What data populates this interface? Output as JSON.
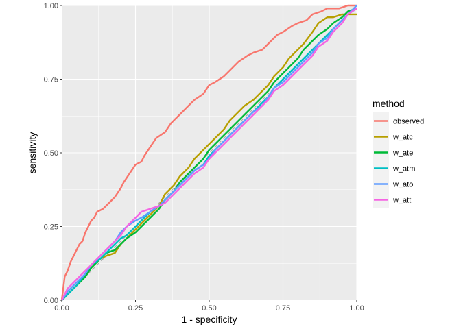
{
  "chart_data": {
    "type": "line",
    "title": "",
    "xlabel": "1 - specificity",
    "ylabel": "sensitivity",
    "xlim": [
      0,
      1
    ],
    "ylim": [
      0,
      1
    ],
    "x_ticks": [
      "0.00",
      "0.25",
      "0.50",
      "0.75",
      "1.00"
    ],
    "y_ticks": [
      "0.00",
      "0.25",
      "0.50",
      "0.75",
      "1.00"
    ],
    "grid": true,
    "reference_line": {
      "style": "dashed",
      "from": [
        0,
        0
      ],
      "to": [
        1,
        1
      ]
    },
    "legend": {
      "title": "method",
      "position": "right"
    },
    "series": [
      {
        "name": "observed",
        "color": "#F8766D",
        "points": [
          [
            0,
            0
          ],
          [
            0.005,
            0.04
          ],
          [
            0.01,
            0.08
          ],
          [
            0.02,
            0.1
          ],
          [
            0.03,
            0.13
          ],
          [
            0.04,
            0.15
          ],
          [
            0.06,
            0.19
          ],
          [
            0.07,
            0.2
          ],
          [
            0.08,
            0.23
          ],
          [
            0.09,
            0.25
          ],
          [
            0.1,
            0.27
          ],
          [
            0.11,
            0.28
          ],
          [
            0.12,
            0.3
          ],
          [
            0.14,
            0.31
          ],
          [
            0.16,
            0.33
          ],
          [
            0.18,
            0.35
          ],
          [
            0.2,
            0.38
          ],
          [
            0.21,
            0.4
          ],
          [
            0.23,
            0.43
          ],
          [
            0.25,
            0.46
          ],
          [
            0.27,
            0.47
          ],
          [
            0.28,
            0.49
          ],
          [
            0.3,
            0.52
          ],
          [
            0.32,
            0.55
          ],
          [
            0.35,
            0.57
          ],
          [
            0.37,
            0.6
          ],
          [
            0.4,
            0.63
          ],
          [
            0.43,
            0.66
          ],
          [
            0.45,
            0.68
          ],
          [
            0.48,
            0.7
          ],
          [
            0.5,
            0.73
          ],
          [
            0.52,
            0.74
          ],
          [
            0.55,
            0.76
          ],
          [
            0.58,
            0.79
          ],
          [
            0.6,
            0.81
          ],
          [
            0.63,
            0.83
          ],
          [
            0.65,
            0.84
          ],
          [
            0.68,
            0.85
          ],
          [
            0.7,
            0.87
          ],
          [
            0.73,
            0.9
          ],
          [
            0.75,
            0.91
          ],
          [
            0.78,
            0.93
          ],
          [
            0.8,
            0.94
          ],
          [
            0.83,
            0.95
          ],
          [
            0.85,
            0.97
          ],
          [
            0.88,
            0.98
          ],
          [
            0.9,
            0.99
          ],
          [
            0.94,
            0.99
          ],
          [
            0.97,
            1.0
          ],
          [
            1.0,
            1.0
          ]
        ]
      },
      {
        "name": "w_atc",
        "color": "#B79F00",
        "points": [
          [
            0,
            0
          ],
          [
            0.02,
            0.02
          ],
          [
            0.05,
            0.05
          ],
          [
            0.08,
            0.08
          ],
          [
            0.1,
            0.11
          ],
          [
            0.13,
            0.14
          ],
          [
            0.15,
            0.15
          ],
          [
            0.18,
            0.16
          ],
          [
            0.2,
            0.19
          ],
          [
            0.22,
            0.21
          ],
          [
            0.25,
            0.24
          ],
          [
            0.27,
            0.26
          ],
          [
            0.3,
            0.29
          ],
          [
            0.33,
            0.32
          ],
          [
            0.35,
            0.36
          ],
          [
            0.38,
            0.39
          ],
          [
            0.4,
            0.42
          ],
          [
            0.43,
            0.45
          ],
          [
            0.45,
            0.48
          ],
          [
            0.48,
            0.51
          ],
          [
            0.5,
            0.53
          ],
          [
            0.52,
            0.55
          ],
          [
            0.55,
            0.58
          ],
          [
            0.57,
            0.61
          ],
          [
            0.6,
            0.64
          ],
          [
            0.62,
            0.66
          ],
          [
            0.65,
            0.68
          ],
          [
            0.68,
            0.71
          ],
          [
            0.7,
            0.73
          ],
          [
            0.72,
            0.76
          ],
          [
            0.75,
            0.79
          ],
          [
            0.77,
            0.82
          ],
          [
            0.8,
            0.85
          ],
          [
            0.82,
            0.87
          ],
          [
            0.85,
            0.91
          ],
          [
            0.87,
            0.94
          ],
          [
            0.9,
            0.96
          ],
          [
            0.92,
            0.96
          ],
          [
            0.95,
            0.97
          ],
          [
            0.97,
            0.97
          ],
          [
            1.0,
            0.97
          ]
        ]
      },
      {
        "name": "w_ate",
        "color": "#00BA38",
        "points": [
          [
            0,
            0
          ],
          [
            0.02,
            0.02
          ],
          [
            0.05,
            0.05
          ],
          [
            0.08,
            0.08
          ],
          [
            0.1,
            0.11
          ],
          [
            0.13,
            0.14
          ],
          [
            0.15,
            0.16
          ],
          [
            0.18,
            0.17
          ],
          [
            0.2,
            0.19
          ],
          [
            0.22,
            0.21
          ],
          [
            0.25,
            0.23
          ],
          [
            0.27,
            0.25
          ],
          [
            0.3,
            0.28
          ],
          [
            0.33,
            0.31
          ],
          [
            0.35,
            0.34
          ],
          [
            0.38,
            0.37
          ],
          [
            0.4,
            0.4
          ],
          [
            0.43,
            0.43
          ],
          [
            0.45,
            0.45
          ],
          [
            0.48,
            0.48
          ],
          [
            0.5,
            0.51
          ],
          [
            0.52,
            0.53
          ],
          [
            0.55,
            0.56
          ],
          [
            0.57,
            0.58
          ],
          [
            0.6,
            0.61
          ],
          [
            0.62,
            0.63
          ],
          [
            0.65,
            0.66
          ],
          [
            0.68,
            0.69
          ],
          [
            0.7,
            0.71
          ],
          [
            0.72,
            0.74
          ],
          [
            0.75,
            0.77
          ],
          [
            0.77,
            0.79
          ],
          [
            0.8,
            0.82
          ],
          [
            0.82,
            0.85
          ],
          [
            0.85,
            0.88
          ],
          [
            0.87,
            0.9
          ],
          [
            0.9,
            0.92
          ],
          [
            0.92,
            0.94
          ],
          [
            0.95,
            0.96
          ],
          [
            0.97,
            0.98
          ],
          [
            1.0,
            0.99
          ]
        ]
      },
      {
        "name": "w_atm",
        "color": "#00BFC4",
        "points": [
          [
            0,
            0
          ],
          [
            0.02,
            0.02
          ],
          [
            0.05,
            0.05
          ],
          [
            0.08,
            0.09
          ],
          [
            0.1,
            0.12
          ],
          [
            0.13,
            0.14
          ],
          [
            0.15,
            0.16
          ],
          [
            0.18,
            0.19
          ],
          [
            0.2,
            0.21
          ],
          [
            0.22,
            0.22
          ],
          [
            0.25,
            0.25
          ],
          [
            0.27,
            0.27
          ],
          [
            0.3,
            0.3
          ],
          [
            0.33,
            0.32
          ],
          [
            0.35,
            0.34
          ],
          [
            0.38,
            0.37
          ],
          [
            0.4,
            0.39
          ],
          [
            0.43,
            0.42
          ],
          [
            0.45,
            0.44
          ],
          [
            0.48,
            0.46
          ],
          [
            0.5,
            0.49
          ],
          [
            0.52,
            0.51
          ],
          [
            0.55,
            0.54
          ],
          [
            0.57,
            0.56
          ],
          [
            0.6,
            0.59
          ],
          [
            0.62,
            0.61
          ],
          [
            0.65,
            0.64
          ],
          [
            0.68,
            0.67
          ],
          [
            0.7,
            0.69
          ],
          [
            0.72,
            0.72
          ],
          [
            0.75,
            0.75
          ],
          [
            0.77,
            0.77
          ],
          [
            0.8,
            0.8
          ],
          [
            0.82,
            0.82
          ],
          [
            0.85,
            0.85
          ],
          [
            0.87,
            0.87
          ],
          [
            0.9,
            0.9
          ],
          [
            0.92,
            0.92
          ],
          [
            0.95,
            0.95
          ],
          [
            0.97,
            0.97
          ],
          [
            1.0,
            0.99
          ]
        ]
      },
      {
        "name": "w_ato",
        "color": "#619CFF",
        "points": [
          [
            0,
            0
          ],
          [
            0.02,
            0.03
          ],
          [
            0.05,
            0.06
          ],
          [
            0.08,
            0.09
          ],
          [
            0.1,
            0.12
          ],
          [
            0.13,
            0.15
          ],
          [
            0.15,
            0.17
          ],
          [
            0.18,
            0.2
          ],
          [
            0.2,
            0.23
          ],
          [
            0.22,
            0.25
          ],
          [
            0.25,
            0.27
          ],
          [
            0.27,
            0.28
          ],
          [
            0.3,
            0.3
          ],
          [
            0.33,
            0.32
          ],
          [
            0.35,
            0.34
          ],
          [
            0.38,
            0.37
          ],
          [
            0.4,
            0.39
          ],
          [
            0.43,
            0.42
          ],
          [
            0.45,
            0.44
          ],
          [
            0.48,
            0.46
          ],
          [
            0.5,
            0.48
          ],
          [
            0.52,
            0.51
          ],
          [
            0.55,
            0.54
          ],
          [
            0.57,
            0.56
          ],
          [
            0.6,
            0.59
          ],
          [
            0.62,
            0.61
          ],
          [
            0.65,
            0.64
          ],
          [
            0.68,
            0.66
          ],
          [
            0.7,
            0.69
          ],
          [
            0.72,
            0.72
          ],
          [
            0.75,
            0.74
          ],
          [
            0.77,
            0.76
          ],
          [
            0.8,
            0.79
          ],
          [
            0.82,
            0.81
          ],
          [
            0.85,
            0.84
          ],
          [
            0.87,
            0.87
          ],
          [
            0.9,
            0.89
          ],
          [
            0.92,
            0.92
          ],
          [
            0.95,
            0.95
          ],
          [
            0.97,
            0.97
          ],
          [
            1.0,
            1.0
          ]
        ]
      },
      {
        "name": "w_att",
        "color": "#F564E3",
        "points": [
          [
            0,
            0
          ],
          [
            0.02,
            0.04
          ],
          [
            0.05,
            0.07
          ],
          [
            0.08,
            0.1
          ],
          [
            0.1,
            0.12
          ],
          [
            0.13,
            0.15
          ],
          [
            0.15,
            0.17
          ],
          [
            0.18,
            0.2
          ],
          [
            0.2,
            0.22
          ],
          [
            0.22,
            0.25
          ],
          [
            0.25,
            0.28
          ],
          [
            0.27,
            0.3
          ],
          [
            0.3,
            0.31
          ],
          [
            0.33,
            0.32
          ],
          [
            0.35,
            0.33
          ],
          [
            0.38,
            0.36
          ],
          [
            0.4,
            0.38
          ],
          [
            0.43,
            0.41
          ],
          [
            0.45,
            0.43
          ],
          [
            0.48,
            0.45
          ],
          [
            0.5,
            0.48
          ],
          [
            0.52,
            0.5
          ],
          [
            0.55,
            0.53
          ],
          [
            0.57,
            0.55
          ],
          [
            0.6,
            0.58
          ],
          [
            0.62,
            0.6
          ],
          [
            0.65,
            0.63
          ],
          [
            0.68,
            0.66
          ],
          [
            0.7,
            0.68
          ],
          [
            0.72,
            0.71
          ],
          [
            0.75,
            0.73
          ],
          [
            0.77,
            0.75
          ],
          [
            0.8,
            0.78
          ],
          [
            0.82,
            0.8
          ],
          [
            0.85,
            0.83
          ],
          [
            0.87,
            0.86
          ],
          [
            0.9,
            0.88
          ],
          [
            0.92,
            0.91
          ],
          [
            0.95,
            0.94
          ],
          [
            0.97,
            0.97
          ],
          [
            1.0,
            0.99
          ]
        ]
      }
    ]
  }
}
